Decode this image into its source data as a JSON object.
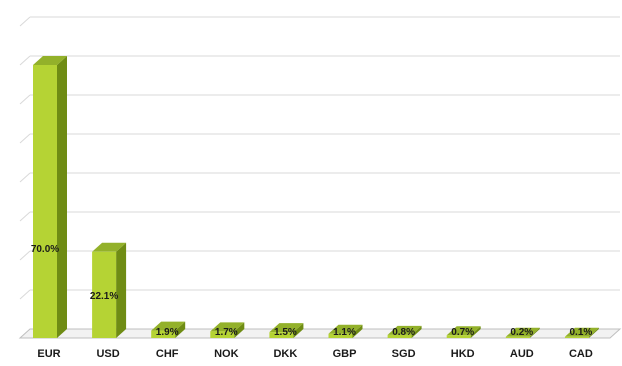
{
  "chart_data": {
    "type": "bar",
    "categories": [
      "EUR",
      "USD",
      "CHF",
      "NOK",
      "DKK",
      "GBP",
      "SGD",
      "HKD",
      "AUD",
      "CAD"
    ],
    "values": [
      70.0,
      22.1,
      1.9,
      1.7,
      1.5,
      1.1,
      0.8,
      0.7,
      0.2,
      0.1
    ],
    "data_labels": [
      "70.0%",
      "22.1%",
      "1.9%",
      "1.7%",
      "1.5%",
      "1.1%",
      "0.8%",
      "0.7%",
      "0.2%",
      "0.1%"
    ],
    "title": "",
    "xlabel": "",
    "ylabel": "",
    "ylim": [
      0,
      80
    ],
    "y_gridline_step": 10,
    "grid": true,
    "style": "3d",
    "colors": {
      "bar_front": "#b5d334",
      "bar_side": "#6f8c14",
      "bar_top": "#93b12a",
      "gridline": "#d9d9d9",
      "floor": "#bfbfbf",
      "text": "#1a1a1a"
    }
  }
}
